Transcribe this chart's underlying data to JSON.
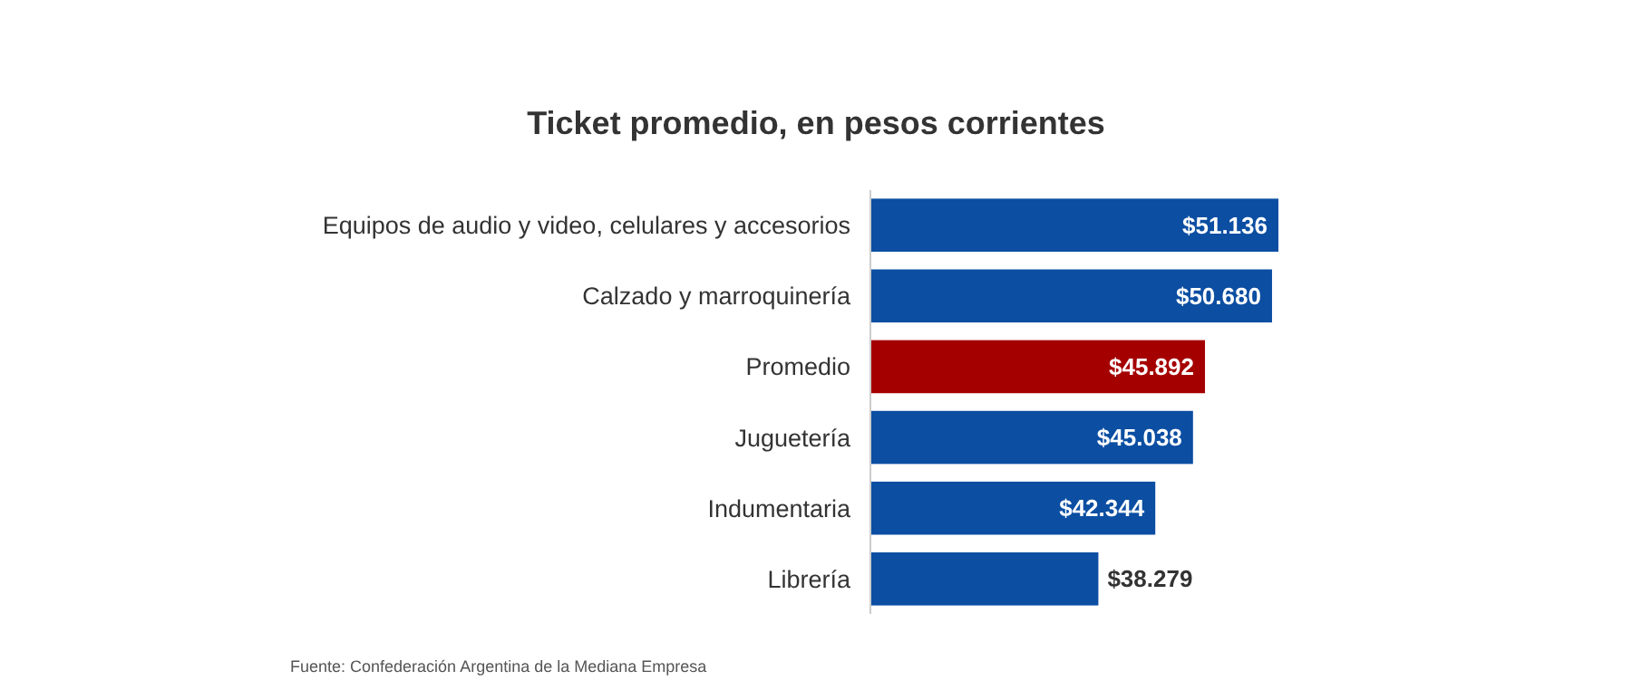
{
  "chart_data": {
    "type": "bar",
    "orientation": "horizontal",
    "title": "Ticket promedio, en pesos corrientes",
    "categories": [
      "Equipos de audio y video, celulares y accesorios",
      "Calzado y marroquinería",
      "Promedio",
      "Juguetería",
      "Indumentaria",
      "Librería"
    ],
    "values": [
      51136,
      50680,
      45892,
      45038,
      42344,
      38279
    ],
    "colors": [
      "#0b4ea2",
      "#0b4ea2",
      "#a50000",
      "#0b4ea2",
      "#0b4ea2",
      "#0b4ea2"
    ],
    "value_labels": [
      "$51.136",
      "$50.680",
      "$45.892",
      "$45.038",
      "$42.344",
      "$38.279"
    ],
    "xlim": [
      22000,
      51136
    ],
    "tick_labels": "y",
    "annotations": [
      "Fuente: Confederación Argentina de la Mediana Empresa"
    ]
  }
}
